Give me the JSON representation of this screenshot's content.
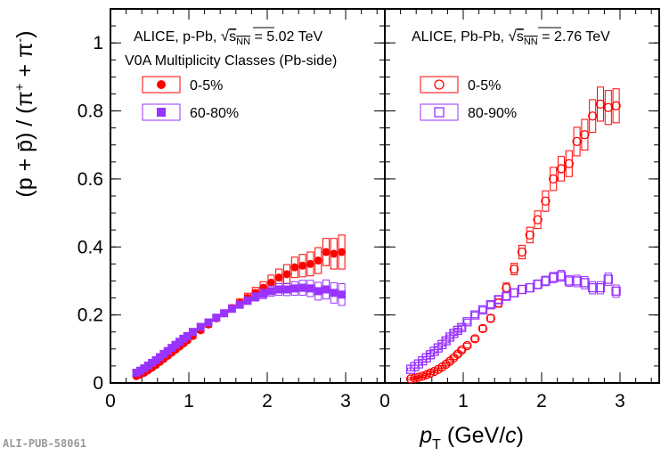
{
  "watermark": "ALI-PUB-58061",
  "colors": {
    "red": "#ff0000",
    "purple": "#9933ff",
    "axis": "#000000",
    "grid": "#000000"
  },
  "y_axis": {
    "label_main": "(p + p̄) / (π",
    "sup1": "+",
    "label_mid": " + π",
    "sup2": "-",
    "label_end": ")",
    "range": [
      0,
      1.1
    ],
    "ticks": [
      0,
      0.2,
      0.4,
      0.6,
      0.8,
      1
    ]
  },
  "x_axis": {
    "label_p": "p",
    "label_sub": "T",
    "label_rest": " (GeV/",
    "label_c": "c",
    "label_close": ")",
    "range": [
      0,
      3.5
    ],
    "ticks": [
      0,
      1,
      2,
      3
    ]
  },
  "panels": {
    "left": {
      "system_prefix": "ALICE, p-Pb, ",
      "sqrt_s": "s",
      "sqrt_sub": "NN",
      "energy": " = 5.02 TeV",
      "subtitle": "V0A Multiplicity Classes (Pb-side)",
      "legend": [
        {
          "label": "0-5%"
        },
        {
          "label": "60-80%"
        }
      ]
    },
    "right": {
      "system_prefix": "ALICE, Pb-Pb, ",
      "sqrt_s": "s",
      "sqrt_sub": "NN",
      "energy": " = 2.76 TeV",
      "legend": [
        {
          "label": "0-5%"
        },
        {
          "label": "80-90%"
        }
      ]
    }
  },
  "chart_data": [
    {
      "type": "scatter",
      "title": "ALICE, p-Pb, √sNN = 5.02 TeV",
      "xlabel": "pT (GeV/c)",
      "ylabel": "(p + p̄) / (π+ + π-)",
      "xlim": [
        0,
        3.5
      ],
      "ylim": [
        0,
        1.1
      ],
      "series": [
        {
          "name": "0-5%",
          "color": "#ff0000",
          "marker": "filled-circle",
          "x": [
            0.33,
            0.38,
            0.43,
            0.48,
            0.53,
            0.58,
            0.63,
            0.68,
            0.73,
            0.78,
            0.83,
            0.88,
            0.93,
            0.98,
            1.05,
            1.15,
            1.25,
            1.35,
            1.45,
            1.55,
            1.65,
            1.75,
            1.85,
            1.95,
            2.05,
            2.15,
            2.25,
            2.35,
            2.45,
            2.55,
            2.65,
            2.75,
            2.85,
            2.95
          ],
          "y": [
            0.02,
            0.025,
            0.03,
            0.037,
            0.045,
            0.053,
            0.062,
            0.071,
            0.08,
            0.089,
            0.098,
            0.107,
            0.116,
            0.125,
            0.138,
            0.155,
            0.172,
            0.19,
            0.205,
            0.22,
            0.235,
            0.25,
            0.265,
            0.28,
            0.295,
            0.31,
            0.32,
            0.34,
            0.345,
            0.35,
            0.36,
            0.385,
            0.38,
            0.385
          ],
          "box_halfheight": [
            0.004,
            0.004,
            0.004,
            0.004,
            0.005,
            0.005,
            0.005,
            0.005,
            0.006,
            0.006,
            0.006,
            0.006,
            0.006,
            0.006,
            0.007,
            0.007,
            0.008,
            0.008,
            0.009,
            0.01,
            0.012,
            0.014,
            0.016,
            0.018,
            0.022,
            0.025,
            0.028,
            0.03,
            0.033,
            0.035,
            0.038,
            0.04,
            0.045,
            0.05
          ]
        },
        {
          "name": "60-80%",
          "color": "#9933ff",
          "marker": "filled-square",
          "x": [
            0.33,
            0.38,
            0.43,
            0.48,
            0.53,
            0.58,
            0.63,
            0.68,
            0.73,
            0.78,
            0.83,
            0.88,
            0.93,
            0.98,
            1.05,
            1.15,
            1.25,
            1.35,
            1.45,
            1.55,
            1.65,
            1.75,
            1.85,
            1.95,
            2.05,
            2.15,
            2.25,
            2.35,
            2.45,
            2.55,
            2.65,
            2.75,
            2.85,
            2.95
          ],
          "y": [
            0.03,
            0.036,
            0.043,
            0.051,
            0.059,
            0.067,
            0.076,
            0.085,
            0.094,
            0.103,
            0.112,
            0.121,
            0.13,
            0.138,
            0.15,
            0.165,
            0.178,
            0.192,
            0.205,
            0.218,
            0.23,
            0.242,
            0.253,
            0.262,
            0.27,
            0.275,
            0.275,
            0.278,
            0.28,
            0.278,
            0.27,
            0.275,
            0.265,
            0.26
          ],
          "box_halfheight": [
            0.004,
            0.004,
            0.004,
            0.004,
            0.005,
            0.005,
            0.005,
            0.005,
            0.006,
            0.006,
            0.006,
            0.006,
            0.006,
            0.006,
            0.007,
            0.007,
            0.008,
            0.008,
            0.009,
            0.009,
            0.01,
            0.011,
            0.012,
            0.014,
            0.015,
            0.017,
            0.018,
            0.02,
            0.022,
            0.024,
            0.026,
            0.028,
            0.03,
            0.032
          ]
        }
      ]
    },
    {
      "type": "scatter",
      "title": "ALICE, Pb-Pb, √sNN = 2.76 TeV",
      "xlabel": "pT (GeV/c)",
      "xlim": [
        0,
        3.5
      ],
      "ylim": [
        0,
        1.1
      ],
      "series": [
        {
          "name": "0-5%",
          "color": "#ff0000",
          "marker": "open-circle",
          "x": [
            0.33,
            0.38,
            0.43,
            0.48,
            0.53,
            0.58,
            0.63,
            0.68,
            0.73,
            0.78,
            0.83,
            0.88,
            0.93,
            0.98,
            1.05,
            1.15,
            1.25,
            1.35,
            1.45,
            1.55,
            1.65,
            1.75,
            1.85,
            1.95,
            2.05,
            2.15,
            2.25,
            2.35,
            2.45,
            2.55,
            2.65,
            2.75,
            2.85,
            2.95
          ],
          "y": [
            0.012,
            0.014,
            0.017,
            0.02,
            0.024,
            0.029,
            0.034,
            0.04,
            0.047,
            0.055,
            0.064,
            0.074,
            0.085,
            0.097,
            0.11,
            0.13,
            0.16,
            0.19,
            0.235,
            0.28,
            0.335,
            0.385,
            0.435,
            0.48,
            0.535,
            0.6,
            0.63,
            0.645,
            0.71,
            0.73,
            0.785,
            0.82,
            0.81,
            0.815
          ],
          "box_halfheight": [
            0.003,
            0.003,
            0.003,
            0.003,
            0.003,
            0.004,
            0.004,
            0.004,
            0.004,
            0.005,
            0.005,
            0.005,
            0.006,
            0.006,
            0.007,
            0.008,
            0.009,
            0.01,
            0.012,
            0.014,
            0.017,
            0.02,
            0.023,
            0.026,
            0.03,
            0.034,
            0.036,
            0.038,
            0.042,
            0.045,
            0.048,
            0.05,
            0.05,
            0.05
          ]
        },
        {
          "name": "80-90%",
          "color": "#9933ff",
          "marker": "open-square",
          "x": [
            0.33,
            0.38,
            0.43,
            0.48,
            0.53,
            0.58,
            0.63,
            0.68,
            0.73,
            0.78,
            0.83,
            0.88,
            0.93,
            0.98,
            1.05,
            1.15,
            1.25,
            1.35,
            1.45,
            1.55,
            1.65,
            1.75,
            1.85,
            1.95,
            2.05,
            2.15,
            2.25,
            2.35,
            2.45,
            2.55,
            2.65,
            2.75,
            2.85,
            2.95
          ],
          "y": [
            0.04,
            0.048,
            0.056,
            0.065,
            0.074,
            0.083,
            0.093,
            0.103,
            0.113,
            0.124,
            0.135,
            0.146,
            0.155,
            0.163,
            0.18,
            0.2,
            0.215,
            0.23,
            0.245,
            0.255,
            0.265,
            0.275,
            0.28,
            0.29,
            0.3,
            0.31,
            0.315,
            0.3,
            0.3,
            0.295,
            0.28,
            0.28,
            0.305,
            0.27
          ],
          "box_halfheight": [
            0.004,
            0.004,
            0.004,
            0.004,
            0.004,
            0.005,
            0.005,
            0.005,
            0.005,
            0.006,
            0.006,
            0.006,
            0.006,
            0.007,
            0.007,
            0.008,
            0.008,
            0.009,
            0.01,
            0.01,
            0.011,
            0.012,
            0.012,
            0.013,
            0.014,
            0.015,
            0.016,
            0.016,
            0.017,
            0.018,
            0.018,
            0.018,
            0.018,
            0.018
          ]
        }
      ]
    }
  ]
}
